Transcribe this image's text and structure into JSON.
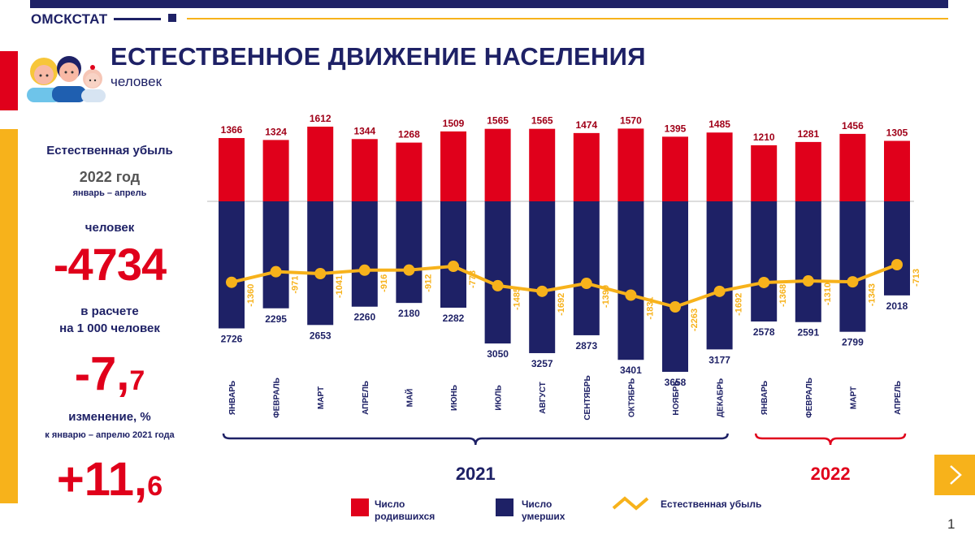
{
  "brand": "ОМСКСТАТ",
  "title": "ЕСТЕСТВЕННОЕ ДВИЖЕНИЕ НАСЕЛЕНИЯ",
  "subtitle": "человек",
  "left_panel": {
    "natural_decline_label": "Естественная убыль",
    "year_label": "2022 год",
    "period_label": "январь – апрель",
    "persons_label": "человек",
    "absolute_value": "-4734",
    "per1000_label_1": "в расчете",
    "per1000_label_2": "на 1 000 человек",
    "rate_int": "-7,",
    "rate_dec": "7",
    "change_label": "изменение, %",
    "change_base_label": "к январю – апрелю 2021 года",
    "change_int": "+11,",
    "change_dec": "6"
  },
  "page_number": "1",
  "colors": {
    "births": "#e0001b",
    "deaths": "#1e2166",
    "decline": "#f7b21b"
  },
  "chart_data": {
    "type": "bar",
    "categories": [
      "ЯНВАРЬ",
      "ФЕВРАЛЬ",
      "МАРТ",
      "АПРЕЛЬ",
      "МАЙ",
      "ИЮНЬ",
      "ИЮЛЬ",
      "АВГУСТ",
      "СЕНТЯБРЬ",
      "ОКТЯБРЬ",
      "НОЯБРЬ",
      "ДЕКАБРЬ",
      "ЯНВАРЬ",
      "ФЕВРАЛЬ",
      "МАРТ",
      "АПРЕЛЬ"
    ],
    "groups": [
      {
        "label": "2021",
        "from": 0,
        "to": 11
      },
      {
        "label": "2022",
        "from": 12,
        "to": 15
      }
    ],
    "series": [
      {
        "name": "Число родившихся",
        "kind": "bar-up",
        "values": [
          1366,
          1324,
          1612,
          1344,
          1268,
          1509,
          1565,
          1565,
          1474,
          1570,
          1395,
          1485,
          1210,
          1281,
          1456,
          1305
        ]
      },
      {
        "name": "Число умерших",
        "kind": "bar-down",
        "values": [
          2726,
          2295,
          2653,
          2260,
          2180,
          2282,
          3050,
          3257,
          2873,
          3401,
          3658,
          3177,
          2578,
          2591,
          2799,
          2018
        ]
      },
      {
        "name": "Естественная убыль",
        "kind": "line",
        "values": [
          -1360,
          -971,
          -1041,
          -916,
          -912,
          -773,
          -1485,
          -1692,
          -1399,
          -1831,
          -2263,
          -1692,
          -1368,
          -1310,
          -1343,
          -713
        ]
      }
    ],
    "legend": {
      "births_1": "Число",
      "births_2": "родившихся",
      "deaths_1": "Число",
      "deaths_2": "умерших",
      "decline": "Естественная убыль"
    }
  }
}
